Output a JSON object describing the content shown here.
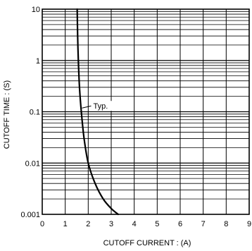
{
  "chart_data": {
    "type": "line",
    "title": "",
    "xlabel": "CUTOFF  CURRENT : (A)",
    "ylabel": "CUTOFF  TIME : (S)",
    "x_ticks": [
      "0",
      "1",
      "2",
      "3",
      "4",
      "5",
      "6",
      "7",
      "8",
      "9"
    ],
    "y_ticks": [
      "0.001",
      "0.01",
      "0.1",
      "1",
      "10"
    ],
    "xlim": [
      0,
      9
    ],
    "ylim": [
      0.001,
      10
    ],
    "y_scale": "log",
    "grid": true,
    "series": [
      {
        "name": "Typ.",
        "x": [
          1.52,
          1.54,
          1.57,
          1.62,
          1.7,
          1.82,
          2.0,
          2.3,
          2.65,
          3.0,
          3.3
        ],
        "y": [
          10,
          3,
          1,
          0.3,
          0.1,
          0.03,
          0.01,
          0.004,
          0.002,
          0.0013,
          0.001
        ]
      }
    ],
    "annotations": [
      {
        "text": "Typ.",
        "x": 1.7,
        "y": 0.13
      }
    ]
  }
}
